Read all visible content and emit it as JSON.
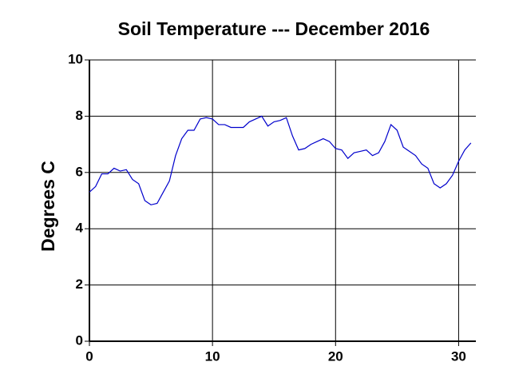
{
  "chart_data": {
    "type": "line",
    "title": "Soil Temperature --- December 2016",
    "y_label": "Degrees C",
    "x": [
      0,
      0.5,
      1,
      1.5,
      2,
      2.5,
      3,
      3.5,
      4,
      4.5,
      5,
      5.5,
      6,
      6.5,
      7,
      7.5,
      8,
      8.5,
      9,
      9.5,
      10,
      10.5,
      11,
      11.5,
      12,
      12.5,
      13,
      13.5,
      14,
      14.5,
      15,
      15.5,
      16,
      16.5,
      17,
      17.5,
      18,
      18.5,
      19,
      19.5,
      20,
      20.5,
      21,
      21.5,
      22,
      22.5,
      23,
      23.5,
      24,
      24.5,
      25,
      25.5,
      26,
      26.5,
      27,
      27.5,
      28,
      28.5,
      29,
      29.5,
      30,
      30.5,
      31
    ],
    "values": [
      5.3,
      5.5,
      5.95,
      5.95,
      6.15,
      6.05,
      6.1,
      5.75,
      5.6,
      5.0,
      4.85,
      4.9,
      5.3,
      5.7,
      6.6,
      7.2,
      7.5,
      7.5,
      7.9,
      7.95,
      7.9,
      7.7,
      7.7,
      7.6,
      7.6,
      7.6,
      7.8,
      7.9,
      8.0,
      7.65,
      7.8,
      7.85,
      7.95,
      7.3,
      6.8,
      6.85,
      7.0,
      7.1,
      7.2,
      7.1,
      6.85,
      6.8,
      6.5,
      6.7,
      6.75,
      6.8,
      6.6,
      6.7,
      7.1,
      7.7,
      7.5,
      6.9,
      6.75,
      6.6,
      6.3,
      6.15,
      5.6,
      5.45,
      5.6,
      5.9,
      6.4,
      6.8,
      7.05
    ],
    "color": "#0000cc",
    "xlim": [
      0,
      31.4
    ],
    "xticks": [
      0,
      10,
      20,
      30
    ],
    "ylim": [
      0,
      10
    ],
    "yticks": [
      0,
      2,
      4,
      6,
      8,
      10
    ],
    "grid": true
  }
}
